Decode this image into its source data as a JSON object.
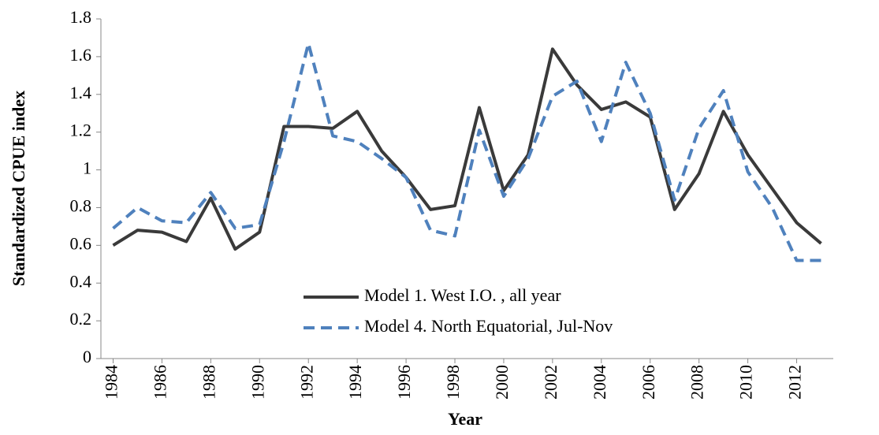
{
  "chart_data": {
    "type": "line",
    "x_label": "Year",
    "y_label": "Standardized CPUE index",
    "x": [
      1984,
      1985,
      1986,
      1987,
      1988,
      1989,
      1990,
      1991,
      1992,
      1993,
      1994,
      1995,
      1996,
      1997,
      1998,
      1999,
      2000,
      2001,
      2002,
      2003,
      2004,
      2005,
      2006,
      2007,
      2008,
      2009,
      2010,
      2011,
      2012,
      2013
    ],
    "series": [
      {
        "name": "Model 1. West I.O. , all year",
        "color": "#3a3a3a",
        "dash": false,
        "values": [
          0.6,
          0.68,
          0.67,
          0.62,
          0.85,
          0.58,
          0.67,
          1.23,
          1.23,
          1.22,
          1.31,
          1.1,
          0.96,
          0.79,
          0.81,
          1.33,
          0.89,
          1.08,
          1.64,
          1.45,
          1.32,
          1.36,
          1.28,
          0.79,
          0.98,
          1.31,
          1.08,
          0.9,
          0.72,
          0.61
        ]
      },
      {
        "name": "Model 4. North Equatorial, Jul-Nov",
        "color": "#4f81bd",
        "dash": true,
        "values": [
          0.69,
          0.8,
          0.73,
          0.72,
          0.88,
          0.69,
          0.71,
          1.15,
          1.67,
          1.18,
          1.15,
          1.06,
          0.96,
          0.68,
          0.65,
          1.21,
          0.86,
          1.06,
          1.39,
          1.47,
          1.15,
          1.57,
          1.3,
          0.84,
          1.22,
          1.42,
          0.99,
          0.8,
          0.52,
          0.52
        ]
      }
    ],
    "xlim": [
      1983.5,
      2013.5
    ],
    "xticks": [
      1984,
      1986,
      1988,
      1990,
      1992,
      1994,
      1996,
      1998,
      2000,
      2002,
      2004,
      2006,
      2008,
      2010,
      2012
    ],
    "ylim": [
      0,
      1.8
    ],
    "yticks": [
      0,
      0.2,
      0.4,
      0.6,
      0.8,
      1,
      1.2,
      1.4,
      1.6,
      1.8
    ]
  }
}
